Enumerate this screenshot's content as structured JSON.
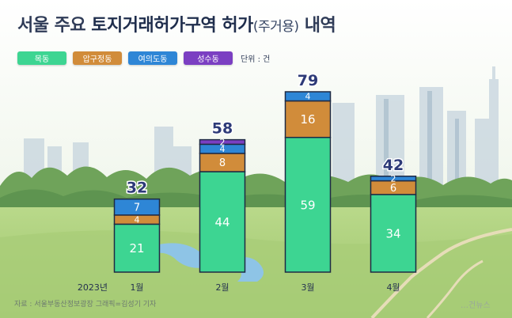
{
  "title": {
    "main_regular": "서울 주요",
    "main_bold": "토지거래허가구역 허가",
    "paren": "(주거용)",
    "suffix": "내역"
  },
  "legend": {
    "items": [
      {
        "label": "목동",
        "color": "#3dd592"
      },
      {
        "label": "압구정동",
        "color": "#d18c3a"
      },
      {
        "label": "여의도동",
        "color": "#2e86d6"
      },
      {
        "label": "성수동",
        "color": "#7b3fc2"
      }
    ],
    "unit": "단위 : 건"
  },
  "source": "자료 : 서울부동산정보광장   그래픽=김성기 기자",
  "watermark": "…건뉴스",
  "chart_data": {
    "type": "bar",
    "stacked": true,
    "year_label": "2023년",
    "categories": [
      "1월",
      "2월",
      "3월",
      "4월"
    ],
    "series": [
      {
        "name": "목동",
        "values": [
          21,
          44,
          59,
          34
        ],
        "color": "#3dd592"
      },
      {
        "name": "압구정동",
        "values": [
          4,
          8,
          16,
          6
        ],
        "color": "#d18c3a"
      },
      {
        "name": "여의도동",
        "values": [
          7,
          4,
          4,
          2
        ],
        "color": "#2e86d6"
      },
      {
        "name": "성수동",
        "values": [
          0,
          2,
          0,
          0
        ],
        "color": "#7b3fc2"
      }
    ],
    "totals": [
      32,
      58,
      79,
      42
    ],
    "ylim": [
      0,
      79
    ]
  }
}
